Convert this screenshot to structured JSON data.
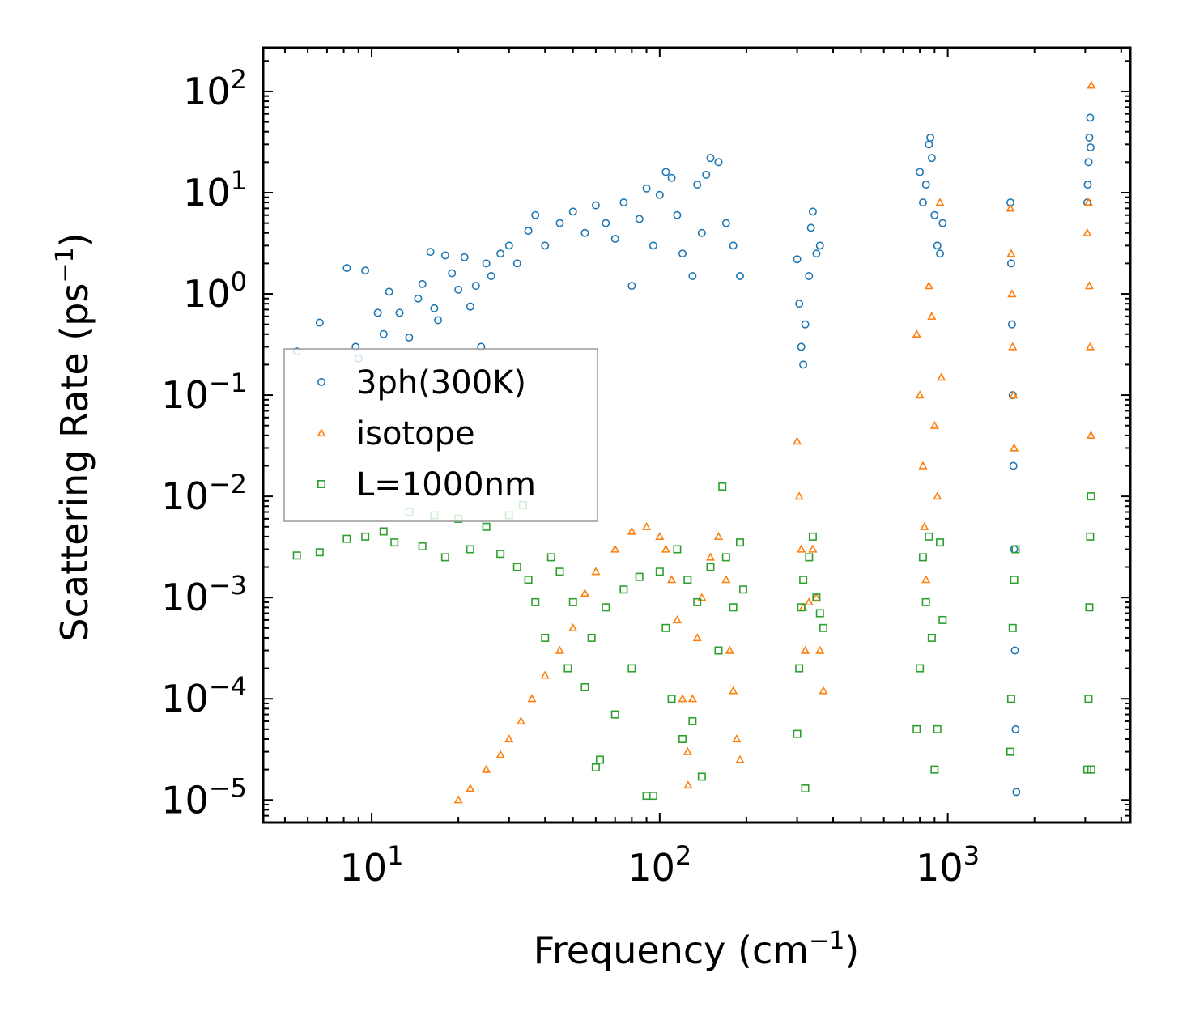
{
  "chart_data": {
    "type": "scatter",
    "title": "",
    "xlabel": "Frequency (cm",
    "xlabel_sup": "−1",
    "xlabel_end": ")",
    "ylabel": "Scattering Rate (ps",
    "ylabel_sup": "−1",
    "ylabel_end": ")",
    "xscale": "log",
    "yscale": "log",
    "xlim": [
      4.2,
      4300
    ],
    "ylim": [
      6e-06,
      270
    ],
    "x_ticks": [
      {
        "value": 10,
        "base": "10",
        "exp": "1"
      },
      {
        "value": 100,
        "base": "10",
        "exp": "2"
      },
      {
        "value": 1000,
        "base": "10",
        "exp": "3"
      }
    ],
    "y_ticks": [
      {
        "value": 100,
        "base": "10",
        "exp": "2"
      },
      {
        "value": 10,
        "base": "10",
        "exp": "1"
      },
      {
        "value": 1,
        "base": "10",
        "exp": "0"
      },
      {
        "value": 0.1,
        "base": "10",
        "exp": "−1"
      },
      {
        "value": 0.01,
        "base": "10",
        "exp": "−2"
      },
      {
        "value": 0.001,
        "base": "10",
        "exp": "−3"
      },
      {
        "value": 0.0001,
        "base": "10",
        "exp": "−4"
      },
      {
        "value": 1e-05,
        "base": "10",
        "exp": "−5"
      }
    ],
    "legend_position": "center-left",
    "series": [
      {
        "name": "3ph(300K)",
        "marker": "circle",
        "color": "#1f77b4",
        "points": [
          [
            5.5,
            0.27
          ],
          [
            6.6,
            0.52
          ],
          [
            8.2,
            1.8
          ],
          [
            8.8,
            0.3
          ],
          [
            9.0,
            0.23
          ],
          [
            9.5,
            1.7
          ],
          [
            10.5,
            0.65
          ],
          [
            11.0,
            0.4
          ],
          [
            11.5,
            1.05
          ],
          [
            12.5,
            0.65
          ],
          [
            13.5,
            0.37
          ],
          [
            14.5,
            0.9
          ],
          [
            15.0,
            1.25
          ],
          [
            16.0,
            2.6
          ],
          [
            16.5,
            0.72
          ],
          [
            17.0,
            0.55
          ],
          [
            18.0,
            2.4
          ],
          [
            19.0,
            1.6
          ],
          [
            20.0,
            1.1
          ],
          [
            21.0,
            2.3
          ],
          [
            22.0,
            0.75
          ],
          [
            23.0,
            1.2
          ],
          [
            24.0,
            0.3
          ],
          [
            25.0,
            2.0
          ],
          [
            26.0,
            1.5
          ],
          [
            28.0,
            2.5
          ],
          [
            30.0,
            3.0
          ],
          [
            32.0,
            2.0
          ],
          [
            35.0,
            4.2
          ],
          [
            37.0,
            6.0
          ],
          [
            40.0,
            3.0
          ],
          [
            45.0,
            5.0
          ],
          [
            50.0,
            6.5
          ],
          [
            55.0,
            4.0
          ],
          [
            60.0,
            7.5
          ],
          [
            65.0,
            5.0
          ],
          [
            70.0,
            3.5
          ],
          [
            75.0,
            8.0
          ],
          [
            80.0,
            1.2
          ],
          [
            85.0,
            5.5
          ],
          [
            90.0,
            11.0
          ],
          [
            95.0,
            3.0
          ],
          [
            100.0,
            9.5
          ],
          [
            105.0,
            16.0
          ],
          [
            110.0,
            14.0
          ],
          [
            115.0,
            6.0
          ],
          [
            120.0,
            2.5
          ],
          [
            130.0,
            1.5
          ],
          [
            135.0,
            12.0
          ],
          [
            140.0,
            4.0
          ],
          [
            145.0,
            15.0
          ],
          [
            150.0,
            22.0
          ],
          [
            160.0,
            20.0
          ],
          [
            170.0,
            5.0
          ],
          [
            180.0,
            3.0
          ],
          [
            190.0,
            1.5
          ],
          [
            300.0,
            2.2
          ],
          [
            305.0,
            0.8
          ],
          [
            310.0,
            0.3
          ],
          [
            315.0,
            0.2
          ],
          [
            320.0,
            0.5
          ],
          [
            330.0,
            1.5
          ],
          [
            335.0,
            4.5
          ],
          [
            340.0,
            6.5
          ],
          [
            350.0,
            2.5
          ],
          [
            360.0,
            3.0
          ],
          [
            800.0,
            16.0
          ],
          [
            820.0,
            8.0
          ],
          [
            840.0,
            12.0
          ],
          [
            860.0,
            30.0
          ],
          [
            870.0,
            35.0
          ],
          [
            880.0,
            22.0
          ],
          [
            900.0,
            6.0
          ],
          [
            920.0,
            3.0
          ],
          [
            940.0,
            2.5
          ],
          [
            960.0,
            5.0
          ],
          [
            1650.0,
            8.0
          ],
          [
            1660.0,
            2.0
          ],
          [
            1670.0,
            0.5
          ],
          [
            1680.0,
            0.1
          ],
          [
            1690.0,
            0.02
          ],
          [
            1700.0,
            0.003
          ],
          [
            1710.0,
            0.0003
          ],
          [
            1720.0,
            5e-05
          ],
          [
            1730.0,
            1.2e-05
          ],
          [
            3050.0,
            8.0
          ],
          [
            3060.0,
            12.0
          ],
          [
            3080.0,
            20.0
          ],
          [
            3100.0,
            35.0
          ],
          [
            3120.0,
            55.0
          ],
          [
            3130.0,
            28.0
          ]
        ]
      },
      {
        "name": "isotope",
        "marker": "triangle",
        "color": "#ff7f0e",
        "points": [
          [
            20.0,
            1e-05
          ],
          [
            22.0,
            1.3e-05
          ],
          [
            25.0,
            2e-05
          ],
          [
            28.0,
            2.8e-05
          ],
          [
            30.0,
            4e-05
          ],
          [
            33.0,
            6e-05
          ],
          [
            36.0,
            0.0001
          ],
          [
            40.0,
            0.00017
          ],
          [
            45.0,
            0.0003
          ],
          [
            50.0,
            0.0005
          ],
          [
            55.0,
            0.0011
          ],
          [
            60.0,
            0.0018
          ],
          [
            70.0,
            0.003
          ],
          [
            80.0,
            0.0045
          ],
          [
            90.0,
            0.005
          ],
          [
            100.0,
            0.004
          ],
          [
            105.0,
            0.003
          ],
          [
            110.0,
            0.0015
          ],
          [
            115.0,
            0.0006
          ],
          [
            120.0,
            0.0001
          ],
          [
            125.0,
            3e-05
          ],
          [
            125.5,
            1.4e-05
          ],
          [
            130.0,
            0.0001
          ],
          [
            135.0,
            0.0004
          ],
          [
            140.0,
            0.001
          ],
          [
            150.0,
            0.0025
          ],
          [
            160.0,
            0.004
          ],
          [
            170.0,
            0.0015
          ],
          [
            175.0,
            0.0003
          ],
          [
            180.0,
            0.00012
          ],
          [
            185.0,
            4e-05
          ],
          [
            190.0,
            2.5e-05
          ],
          [
            300.0,
            0.035
          ],
          [
            305.0,
            0.01
          ],
          [
            310.0,
            0.003
          ],
          [
            315.0,
            0.0008
          ],
          [
            320.0,
            0.0003
          ],
          [
            330.0,
            0.0009
          ],
          [
            340.0,
            0.003
          ],
          [
            350.0,
            0.001
          ],
          [
            360.0,
            0.0003
          ],
          [
            370.0,
            0.00012
          ],
          [
            780.0,
            0.4
          ],
          [
            800.0,
            0.1
          ],
          [
            820.0,
            0.02
          ],
          [
            830.0,
            0.005
          ],
          [
            840.0,
            0.0015
          ],
          [
            860.0,
            1.2
          ],
          [
            880.0,
            0.6
          ],
          [
            900.0,
            0.05
          ],
          [
            920.0,
            0.01
          ],
          [
            940.0,
            8.0
          ],
          [
            950.0,
            0.15
          ],
          [
            1650.0,
            7.0
          ],
          [
            1660.0,
            2.5
          ],
          [
            1670.0,
            1.0
          ],
          [
            1680.0,
            0.3
          ],
          [
            1690.0,
            0.1
          ],
          [
            1700.0,
            0.03
          ],
          [
            3050.0,
            4.0
          ],
          [
            3080.0,
            8.0
          ],
          [
            3100.0,
            1.2
          ],
          [
            3120.0,
            0.3
          ],
          [
            3140.0,
            0.04
          ],
          [
            3150.0,
            115.0
          ]
        ]
      },
      {
        "name": "L=1000nm",
        "marker": "square",
        "color": "#2ca02c",
        "points": [
          [
            5.5,
            0.0026
          ],
          [
            6.6,
            0.0028
          ],
          [
            8.2,
            0.0038
          ],
          [
            9.5,
            0.004
          ],
          [
            11.0,
            0.0045
          ],
          [
            12.0,
            0.0035
          ],
          [
            13.5,
            0.007
          ],
          [
            15.0,
            0.0032
          ],
          [
            16.5,
            0.0065
          ],
          [
            18.0,
            0.0025
          ],
          [
            20.0,
            0.006
          ],
          [
            22.0,
            0.003
          ],
          [
            25.0,
            0.005
          ],
          [
            28.0,
            0.0027
          ],
          [
            30.0,
            0.0065
          ],
          [
            32.0,
            0.002
          ],
          [
            33.5,
            0.0082
          ],
          [
            35.0,
            0.0015
          ],
          [
            37.0,
            0.0009
          ],
          [
            40.0,
            0.0004
          ],
          [
            42.0,
            0.0025
          ],
          [
            45.0,
            0.0018
          ],
          [
            48.0,
            0.0002
          ],
          [
            50.0,
            0.0009
          ],
          [
            55.0,
            0.00013
          ],
          [
            58.0,
            0.0004
          ],
          [
            60.0,
            2.1e-05
          ],
          [
            62.0,
            2.5e-05
          ],
          [
            65.0,
            0.0008
          ],
          [
            70.0,
            7e-05
          ],
          [
            75.0,
            0.0012
          ],
          [
            80.0,
            0.0002
          ],
          [
            85.0,
            0.0016
          ],
          [
            90.0,
            1.1e-05
          ],
          [
            95.0,
            1.1e-05
          ],
          [
            100.0,
            0.0018
          ],
          [
            105.0,
            0.0005
          ],
          [
            110.0,
            0.0001
          ],
          [
            115.0,
            0.003
          ],
          [
            120.0,
            4e-05
          ],
          [
            125.0,
            0.0015
          ],
          [
            130.0,
            6e-05
          ],
          [
            135.0,
            0.0009
          ],
          [
            140.0,
            1.7e-05
          ],
          [
            150.0,
            0.002
          ],
          [
            160.0,
            0.0003
          ],
          [
            165.0,
            0.0125
          ],
          [
            170.0,
            0.0025
          ],
          [
            180.0,
            0.0008
          ],
          [
            190.0,
            0.0035
          ],
          [
            195.0,
            0.0012
          ],
          [
            300.0,
            4.5e-05
          ],
          [
            305.0,
            0.0002
          ],
          [
            310.0,
            0.0008
          ],
          [
            315.0,
            0.0015
          ],
          [
            320.0,
            1.3e-05
          ],
          [
            330.0,
            0.0025
          ],
          [
            340.0,
            0.004
          ],
          [
            350.0,
            0.001
          ],
          [
            360.0,
            0.0007
          ],
          [
            370.0,
            0.0005
          ],
          [
            780.0,
            5e-05
          ],
          [
            800.0,
            0.0002
          ],
          [
            820.0,
            0.0025
          ],
          [
            840.0,
            0.0009
          ],
          [
            860.0,
            0.004
          ],
          [
            880.0,
            0.0004
          ],
          [
            900.0,
            2e-05
          ],
          [
            920.0,
            5e-05
          ],
          [
            940.0,
            0.0035
          ],
          [
            960.0,
            0.0006
          ],
          [
            1650.0,
            3e-05
          ],
          [
            1660.0,
            0.0001
          ],
          [
            1680.0,
            0.0005
          ],
          [
            1700.0,
            0.0015
          ],
          [
            1720.0,
            0.003
          ],
          [
            3050.0,
            2e-05
          ],
          [
            3080.0,
            0.0001
          ],
          [
            3100.0,
            0.0008
          ],
          [
            3120.0,
            0.004
          ],
          [
            3140.0,
            0.01
          ],
          [
            3150.0,
            2e-05
          ]
        ]
      }
    ]
  }
}
